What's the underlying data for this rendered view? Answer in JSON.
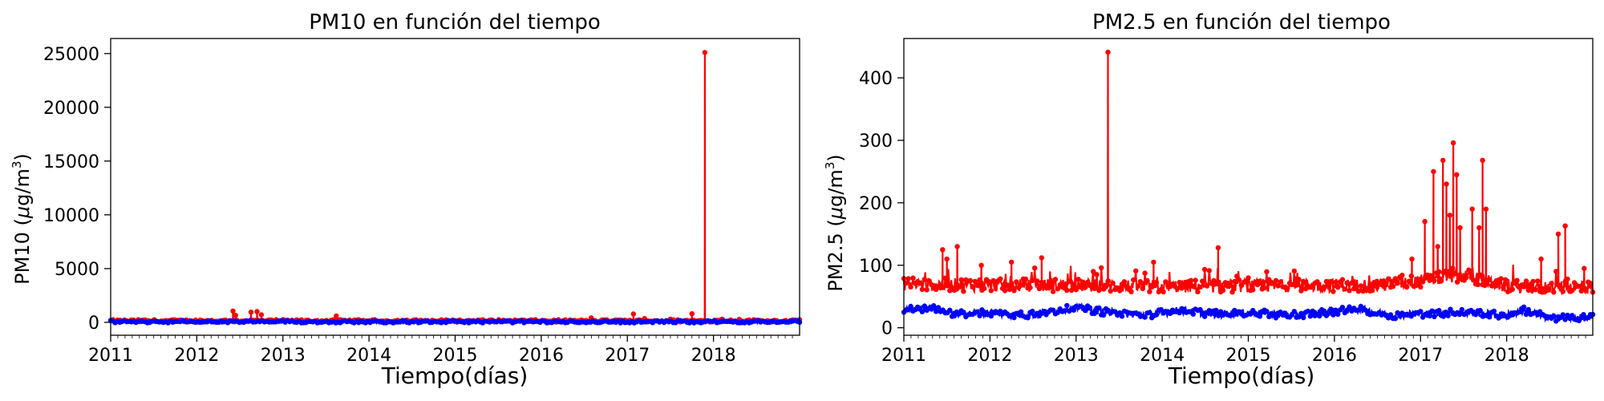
{
  "colors": {
    "series_a": "#ff0000",
    "series_b": "#0000ff",
    "axis": "#000000"
  },
  "chart_data": [
    {
      "type": "line",
      "title": "PM10 en función del tiempo",
      "xlabel": "Tiempo(días)",
      "ylabel": {
        "prefix": "PM10 (",
        "mu": "μ",
        "unit": "g/m",
        "sup": "3",
        "suffix": ")"
      },
      "xlim": [
        2011,
        2019
      ],
      "ylim": [
        -1200,
        26400
      ],
      "x_ticks": [
        "2011",
        "2012",
        "2013",
        "2014",
        "2015",
        "2016",
        "2017",
        "2018"
      ],
      "y_ticks": [
        "0",
        "5000",
        "10000",
        "15000",
        "20000",
        "25000"
      ],
      "series": [
        {
          "name": "red",
          "color": "#ff0000",
          "baseline": [
            [
              2011.0,
              140
            ],
            [
              2013.0,
              140
            ],
            [
              2016.0,
              140
            ],
            [
              2019.0,
              140
            ]
          ],
          "spikes": [
            [
              2012.42,
              1050
            ],
            [
              2012.45,
              650
            ],
            [
              2012.63,
              950
            ],
            [
              2012.7,
              1000
            ],
            [
              2012.75,
              700
            ],
            [
              2013.62,
              600
            ],
            [
              2016.58,
              420
            ],
            [
              2017.07,
              780
            ],
            [
              2017.2,
              350
            ],
            [
              2017.5,
              300
            ],
            [
              2017.75,
              800
            ],
            [
              2017.9,
              25100
            ],
            [
              2018.1,
              300
            ],
            [
              2018.3,
              280
            ],
            [
              2018.5,
              200
            ]
          ]
        },
        {
          "name": "blue",
          "color": "#0000ff",
          "baseline": [
            [
              2011.0,
              60
            ],
            [
              2015.0,
              55
            ],
            [
              2019.0,
              60
            ]
          ],
          "spikes": []
        }
      ]
    },
    {
      "type": "line",
      "title": "PM2.5 en función del tiempo",
      "xlabel": "Tiempo(días)",
      "ylabel": {
        "prefix": "PM2.5 (",
        "mu": "μ",
        "unit": "g/m",
        "sup": "3",
        "suffix": ")"
      },
      "xlim": [
        2011,
        2019
      ],
      "ylim": [
        -12,
        463
      ],
      "x_ticks": [
        "2011",
        "2012",
        "2013",
        "2014",
        "2015",
        "2016",
        "2017",
        "2018"
      ],
      "y_ticks": [
        "0",
        "100",
        "200",
        "300",
        "400"
      ],
      "series": [
        {
          "name": "red",
          "color": "#ff0000",
          "baseline": [
            [
              2011.0,
              70
            ],
            [
              2012.0,
              68
            ],
            [
              2013.0,
              68
            ],
            [
              2014.0,
              66
            ],
            [
              2015.0,
              67
            ],
            [
              2016.0,
              68
            ],
            [
              2016.5,
              68
            ],
            [
              2017.0,
              75
            ],
            [
              2017.5,
              85
            ],
            [
              2018.0,
              66
            ],
            [
              2019.0,
              64
            ]
          ],
          "spikes": [
            [
              2011.45,
              125
            ],
            [
              2011.5,
              110
            ],
            [
              2011.62,
              130
            ],
            [
              2011.9,
              100
            ],
            [
              2012.25,
              105
            ],
            [
              2012.6,
              112
            ],
            [
              2013.2,
              90
            ],
            [
              2013.37,
              441
            ],
            [
              2013.9,
              105
            ],
            [
              2014.65,
              128
            ],
            [
              2016.9,
              110
            ],
            [
              2017.05,
              170
            ],
            [
              2017.15,
              250
            ],
            [
              2017.2,
              130
            ],
            [
              2017.26,
              268
            ],
            [
              2017.3,
              230
            ],
            [
              2017.34,
              180
            ],
            [
              2017.38,
              296
            ],
            [
              2017.42,
              245
            ],
            [
              2017.46,
              160
            ],
            [
              2017.6,
              190
            ],
            [
              2017.68,
              160
            ],
            [
              2017.72,
              268
            ],
            [
              2017.76,
              190
            ],
            [
              2018.4,
              110
            ],
            [
              2018.6,
              150
            ],
            [
              2018.68,
              163
            ],
            [
              2018.9,
              95
            ]
          ]
        },
        {
          "name": "blue",
          "color": "#0000ff",
          "baseline": [
            [
              2011.0,
              28
            ],
            [
              2011.3,
              32
            ],
            [
              2011.6,
              22
            ],
            [
              2012.0,
              24
            ],
            [
              2012.4,
              20
            ],
            [
              2012.8,
              28
            ],
            [
              2013.0,
              32
            ],
            [
              2013.4,
              24
            ],
            [
              2013.8,
              20
            ],
            [
              2014.2,
              28
            ],
            [
              2014.6,
              22
            ],
            [
              2015.0,
              24
            ],
            [
              2015.5,
              20
            ],
            [
              2016.0,
              26
            ],
            [
              2016.3,
              30
            ],
            [
              2016.6,
              20
            ],
            [
              2017.0,
              22
            ],
            [
              2017.5,
              25
            ],
            [
              2018.0,
              20
            ],
            [
              2018.2,
              28
            ],
            [
              2018.5,
              16
            ],
            [
              2019.0,
              16
            ]
          ],
          "spikes": []
        }
      ]
    }
  ]
}
